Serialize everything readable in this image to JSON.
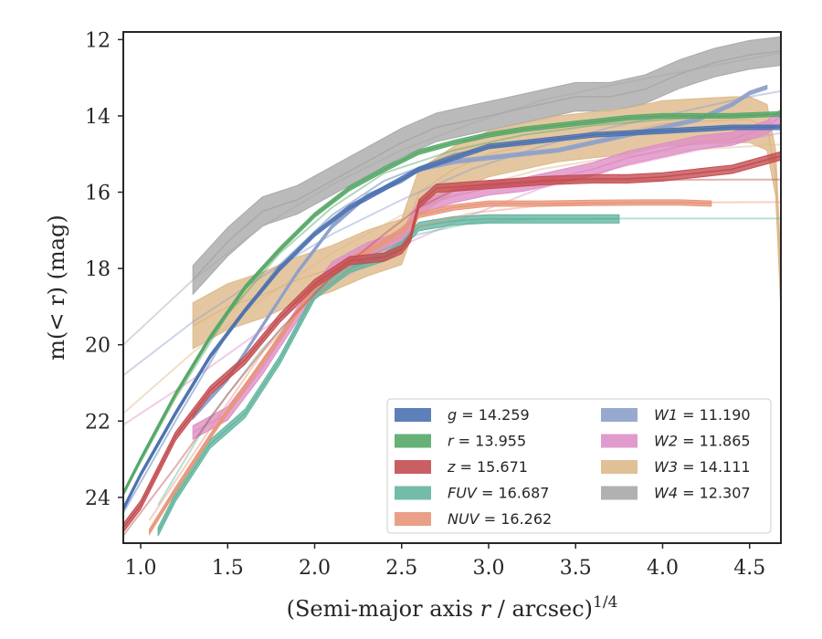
{
  "chart_data": {
    "type": "line",
    "xlabel": "(Semi-major axis r / arcsec)",
    "xlabel_italic": "r",
    "xlabel_sup": "1/4",
    "ylabel": "m(< r) (mag)",
    "xlim": [
      0.9,
      4.68
    ],
    "ylim": [
      25.2,
      11.8
    ],
    "y_inverted": true,
    "grid": false,
    "legend_position": "lower-right",
    "xticks": [
      "1.0",
      "1.5",
      "2.0",
      "2.5",
      "3.0",
      "3.5",
      "4.0",
      "4.5"
    ],
    "yticks": [
      "12",
      "14",
      "16",
      "18",
      "20",
      "22",
      "24"
    ],
    "series": [
      {
        "name": "g",
        "value": "14.259",
        "color": "#4c72b0",
        "band_width": 0.12,
        "x": [
          0.9,
          1.0,
          1.2,
          1.4,
          1.6,
          1.8,
          2.0,
          2.2,
          2.4,
          2.6,
          2.8,
          3.0,
          3.2,
          3.4,
          3.6,
          3.8,
          4.0,
          4.2,
          4.4,
          4.68
        ],
        "y": [
          24.3,
          23.4,
          21.8,
          20.3,
          19.1,
          18.0,
          17.1,
          16.4,
          15.9,
          15.4,
          15.1,
          14.8,
          14.7,
          14.6,
          14.5,
          14.45,
          14.4,
          14.35,
          14.3,
          14.3
        ],
        "fit_x": [
          0.9,
          1.2,
          1.5,
          1.8,
          2.1,
          2.4,
          2.8,
          3.2,
          3.6,
          4.0,
          4.4,
          4.68
        ],
        "fit_y": [
          24.4,
          22.0,
          19.7,
          17.9,
          16.6,
          15.7,
          15.0,
          14.7,
          14.5,
          14.4,
          14.3,
          14.26
        ]
      },
      {
        "name": "r",
        "value": "13.955",
        "color": "#55a868",
        "band_width": 0.12,
        "x": [
          0.9,
          1.0,
          1.2,
          1.4,
          1.6,
          1.8,
          2.0,
          2.2,
          2.4,
          2.6,
          2.8,
          3.0,
          3.2,
          3.4,
          3.6,
          3.8,
          4.0,
          4.2,
          4.4,
          4.68
        ],
        "y": [
          23.9,
          23.0,
          21.3,
          19.8,
          18.5,
          17.5,
          16.6,
          15.9,
          15.4,
          14.95,
          14.7,
          14.5,
          14.35,
          14.25,
          14.15,
          14.05,
          14.0,
          14.0,
          14.0,
          13.95
        ],
        "fit_x": [
          0.9,
          1.2,
          1.5,
          1.8,
          2.1,
          2.4,
          2.8,
          3.2,
          3.6,
          4.0,
          4.4,
          4.68
        ],
        "fit_y": [
          23.9,
          21.4,
          19.2,
          17.6,
          16.4,
          15.5,
          14.9,
          14.5,
          14.25,
          14.1,
          14.0,
          13.95
        ]
      },
      {
        "name": "z",
        "value": "15.671",
        "color": "#c44e52",
        "band_width": 0.22,
        "x": [
          0.9,
          1.0,
          1.2,
          1.4,
          1.6,
          1.8,
          2.0,
          2.2,
          2.4,
          2.5,
          2.55,
          2.6,
          2.7,
          3.0,
          3.3,
          3.6,
          3.8,
          4.0,
          4.2,
          4.4,
          4.68
        ],
        "y": [
          24.8,
          24.2,
          22.4,
          21.2,
          20.4,
          19.3,
          18.4,
          17.8,
          17.7,
          17.5,
          17.2,
          16.3,
          15.9,
          15.8,
          15.7,
          15.65,
          15.65,
          15.6,
          15.5,
          15.4,
          15.05
        ],
        "fit_x": [
          0.9,
          1.2,
          1.5,
          1.8,
          2.1,
          2.4,
          2.6,
          2.8,
          3.2,
          3.6,
          4.0,
          4.4,
          4.68
        ],
        "fit_y": [
          25.0,
          23.2,
          21.3,
          19.6,
          18.2,
          17.1,
          16.4,
          15.95,
          15.75,
          15.7,
          15.68,
          15.67,
          15.67
        ]
      },
      {
        "name": "FUV",
        "value": "16.687",
        "color": "#64b5a0",
        "band_width": 0.22,
        "x": [
          1.1,
          1.2,
          1.4,
          1.6,
          1.8,
          2.0,
          2.2,
          2.4,
          2.5,
          2.6,
          2.8,
          3.0,
          3.2,
          3.4,
          3.6,
          3.75
        ],
        "y": [
          24.9,
          24.0,
          22.6,
          21.8,
          20.4,
          18.7,
          18.0,
          17.7,
          17.4,
          16.9,
          16.75,
          16.7,
          16.7,
          16.7,
          16.7,
          16.7
        ],
        "fit_x": [
          1.1,
          1.4,
          1.7,
          2.0,
          2.3,
          2.6,
          2.9,
          3.3,
          3.8,
          4.2,
          4.68
        ],
        "fit_y": [
          24.2,
          21.9,
          20.1,
          18.7,
          17.7,
          17.1,
          16.8,
          16.7,
          16.69,
          16.69,
          16.69
        ]
      },
      {
        "name": "NUV",
        "value": "16.262",
        "color": "#e8967a",
        "band_width": 0.14,
        "x": [
          1.05,
          1.2,
          1.4,
          1.6,
          1.8,
          2.0,
          2.2,
          2.4,
          2.5,
          2.6,
          2.8,
          3.0,
          3.3,
          3.6,
          3.9,
          4.1,
          4.28
        ],
        "y": [
          24.9,
          23.8,
          22.4,
          21.1,
          19.8,
          18.5,
          17.8,
          17.3,
          17.0,
          16.6,
          16.4,
          16.3,
          16.3,
          16.28,
          16.27,
          16.27,
          16.3
        ],
        "fit_x": [
          1.05,
          1.4,
          1.7,
          2.0,
          2.3,
          2.6,
          2.9,
          3.3,
          3.8,
          4.2,
          4.68
        ],
        "fit_y": [
          24.6,
          22.2,
          20.2,
          18.7,
          17.6,
          16.9,
          16.55,
          16.35,
          16.28,
          16.27,
          16.26
        ]
      },
      {
        "name": "W1",
        "value": "11.190",
        "color": "#8da0cb",
        "band_width": 0.1,
        "x": [
          1.3,
          1.5,
          1.7,
          1.9,
          2.1,
          2.3,
          2.5,
          2.6,
          2.8,
          3.0,
          3.2,
          3.4,
          3.6,
          3.8,
          4.0,
          4.2,
          4.4,
          4.5,
          4.6
        ],
        "y": [
          21.9,
          20.9,
          19.5,
          18.1,
          16.9,
          16.1,
          15.7,
          15.4,
          15.2,
          15.1,
          15.0,
          14.9,
          14.7,
          14.5,
          14.3,
          14.1,
          13.7,
          13.4,
          13.25
        ],
        "fit_x": [
          0.9,
          1.3,
          1.7,
          2.1,
          2.5,
          2.9,
          3.3,
          3.7,
          4.1,
          4.5,
          4.68
        ],
        "fit_y": [
          20.8,
          19.4,
          18.2,
          17.1,
          16.2,
          15.4,
          14.8,
          14.3,
          13.9,
          13.5,
          13.35
        ]
      },
      {
        "name": "W2",
        "value": "11.865",
        "color": "#de8fc6",
        "band_width": 0.35,
        "x": [
          1.3,
          1.5,
          1.7,
          1.9,
          2.1,
          2.3,
          2.5,
          2.6,
          2.8,
          3.0,
          3.2,
          3.4,
          3.6,
          3.8,
          4.0,
          4.2,
          4.4,
          4.6,
          4.68
        ],
        "y": [
          22.3,
          21.8,
          20.6,
          19.2,
          18.0,
          17.5,
          17.2,
          16.4,
          16.1,
          15.9,
          15.8,
          15.6,
          15.4,
          15.1,
          14.9,
          14.7,
          14.6,
          14.3,
          14.0
        ],
        "fit_x": [
          0.9,
          1.3,
          1.7,
          2.1,
          2.5,
          2.9,
          3.3,
          3.7,
          4.1,
          4.5,
          4.68
        ],
        "fit_y": [
          22.1,
          20.9,
          19.6,
          18.4,
          17.4,
          16.6,
          15.9,
          15.4,
          15.0,
          14.6,
          14.45
        ]
      },
      {
        "name": "W3",
        "value": "14.111",
        "color": "#ddb98a",
        "band_width": 1.2,
        "x": [
          1.3,
          1.5,
          1.7,
          1.9,
          2.1,
          2.3,
          2.5,
          2.6,
          2.8,
          3.0,
          3.2,
          3.4,
          3.6,
          3.8,
          4.0,
          4.2,
          4.4,
          4.5,
          4.6,
          4.65,
          4.68
        ],
        "y": [
          19.5,
          19.0,
          18.7,
          18.3,
          18.0,
          17.6,
          17.3,
          16.0,
          15.4,
          15.0,
          14.8,
          14.6,
          14.5,
          14.4,
          14.2,
          14.15,
          14.1,
          14.1,
          14.3,
          15.5,
          18.5
        ],
        "fit_x": [
          0.9,
          1.3,
          1.7,
          2.1,
          2.5,
          2.9,
          3.3,
          3.7,
          4.1,
          4.5,
          4.68
        ],
        "fit_y": [
          21.8,
          20.2,
          18.8,
          17.6,
          16.6,
          15.9,
          15.4,
          15.1,
          14.9,
          14.8,
          14.75
        ]
      },
      {
        "name": "W4",
        "value": "12.307",
        "color": "#a9a9a9",
        "band_width": 0.75,
        "x": [
          1.3,
          1.5,
          1.7,
          1.9,
          2.1,
          2.3,
          2.5,
          2.7,
          2.9,
          3.1,
          3.3,
          3.5,
          3.7,
          3.9,
          4.1,
          4.3,
          4.5,
          4.68
        ],
        "y": [
          18.3,
          17.3,
          16.5,
          16.2,
          15.7,
          15.2,
          14.7,
          14.3,
          14.1,
          13.9,
          13.7,
          13.5,
          13.5,
          13.3,
          12.9,
          12.6,
          12.4,
          12.3
        ],
        "fit_x": [
          0.9,
          1.3,
          1.7,
          2.1,
          2.5,
          2.9,
          3.3,
          3.7,
          4.1,
          4.5,
          4.68
        ],
        "fit_y": [
          20.0,
          18.3,
          16.9,
          15.8,
          14.9,
          14.2,
          13.6,
          13.2,
          12.85,
          12.5,
          12.35
        ]
      }
    ]
  }
}
